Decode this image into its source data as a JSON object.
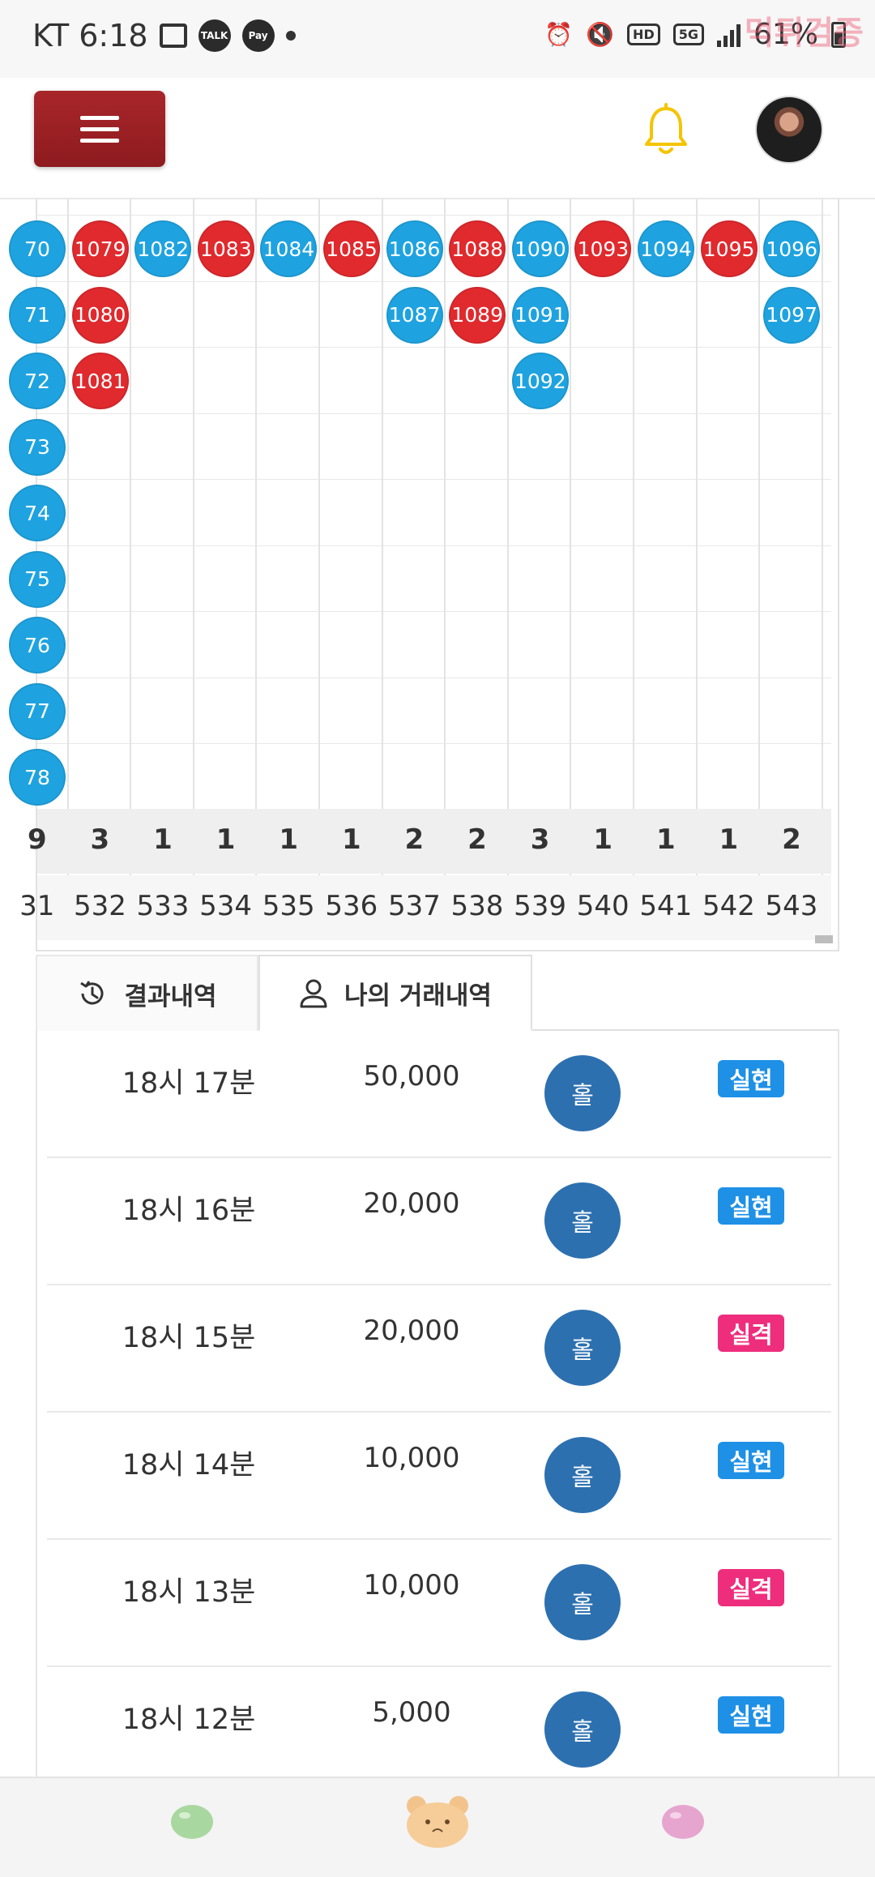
{
  "status_bar": {
    "carrier_time": "KT 6:18",
    "talk_label": "TALK",
    "pay_label": "Pay",
    "hd_label": "HD",
    "net_label": "5G",
    "battery": "61%",
    "watermark": "먹튀검증"
  },
  "header": {
    "menu_icon": "hamburger-icon",
    "bell_color": "#f5c400",
    "bell_icon": "bell-icon",
    "avatar_icon": "user-avatar"
  },
  "grid": {
    "columns": [
      {
        "cells": [
          "70",
          "71",
          "72",
          "73",
          "74",
          "75",
          "76",
          "77",
          "78"
        ],
        "color": "blue"
      },
      {
        "cells": [
          "1079",
          "1080",
          "1081"
        ],
        "color": "red"
      },
      {
        "cells": [
          "1082"
        ],
        "color": "blue"
      },
      {
        "cells": [
          "1083"
        ],
        "color": "red"
      },
      {
        "cells": [
          "1084"
        ],
        "color": "blue"
      },
      {
        "cells": [
          "1085"
        ],
        "color": "red"
      },
      {
        "cells": [
          "1086",
          "1087"
        ],
        "color": "blue"
      },
      {
        "cells": [
          "1088",
          "1089"
        ],
        "color": "red"
      },
      {
        "cells": [
          "1090",
          "1091",
          "1092"
        ],
        "color": "blue"
      },
      {
        "cells": [
          "1093"
        ],
        "color": "red"
      },
      {
        "cells": [
          "1094"
        ],
        "color": "blue"
      },
      {
        "cells": [
          "1095"
        ],
        "color": "red"
      },
      {
        "cells": [
          "1096",
          "1097"
        ],
        "color": "blue"
      }
    ],
    "counts": [
      "9",
      "3",
      "1",
      "1",
      "1",
      "1",
      "2",
      "2",
      "3",
      "1",
      "1",
      "1",
      "2"
    ],
    "rounds": [
      "31",
      "532",
      "533",
      "534",
      "535",
      "536",
      "537",
      "538",
      "539",
      "540",
      "541",
      "542",
      "543"
    ],
    "colors": {
      "red": "#e02a2e",
      "blue": "#1fa3e0"
    }
  },
  "tabs": {
    "results": "결과내역",
    "my_trades": "나의 거래내역"
  },
  "trades": [
    {
      "time": "18시 17분",
      "amount": "50,000",
      "pick": "홀",
      "result": "실현",
      "result_color": "#1e90e6"
    },
    {
      "time": "18시 16분",
      "amount": "20,000",
      "pick": "홀",
      "result": "실현",
      "result_color": "#1e90e6"
    },
    {
      "time": "18시 15분",
      "amount": "20,000",
      "pick": "홀",
      "result": "실격",
      "result_color": "#ee2d7d"
    },
    {
      "time": "18시 14분",
      "amount": "10,000",
      "pick": "홀",
      "result": "실현",
      "result_color": "#1e90e6"
    },
    {
      "time": "18시 13분",
      "amount": "10,000",
      "pick": "홀",
      "result": "실격",
      "result_color": "#ee2d7d"
    },
    {
      "time": "18시 12분",
      "amount": "5,000",
      "pick": "홀",
      "result": "실현",
      "result_color": "#1e90e6"
    }
  ],
  "bottom_nav": {
    "items": [
      "green-bean-icon",
      "bear-face-icon",
      "pink-bean-icon"
    ]
  }
}
